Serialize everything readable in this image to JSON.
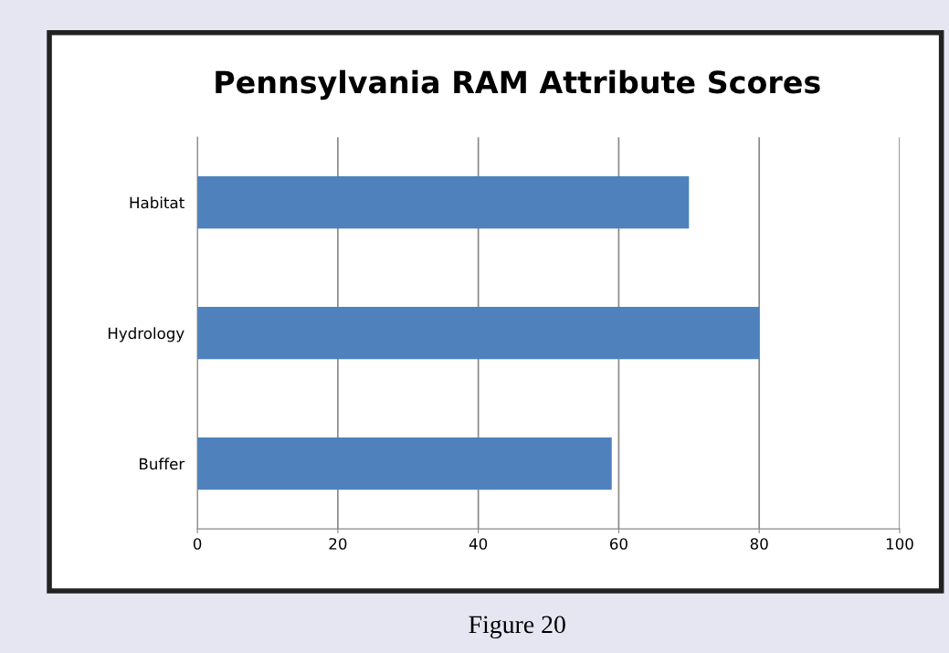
{
  "chart_data": {
    "type": "bar",
    "orientation": "horizontal",
    "title": "Pennsylvania RAM Attribute Scores",
    "categories": [
      "Habitat",
      "Hydrology",
      "Buffer"
    ],
    "values": [
      70,
      80,
      59
    ],
    "color": "#4f81bd",
    "xlim": [
      0,
      100
    ],
    "xticks": [
      0,
      20,
      40,
      60,
      80,
      100
    ],
    "grid": "x",
    "annotations": [
      "Figure 20"
    ]
  }
}
